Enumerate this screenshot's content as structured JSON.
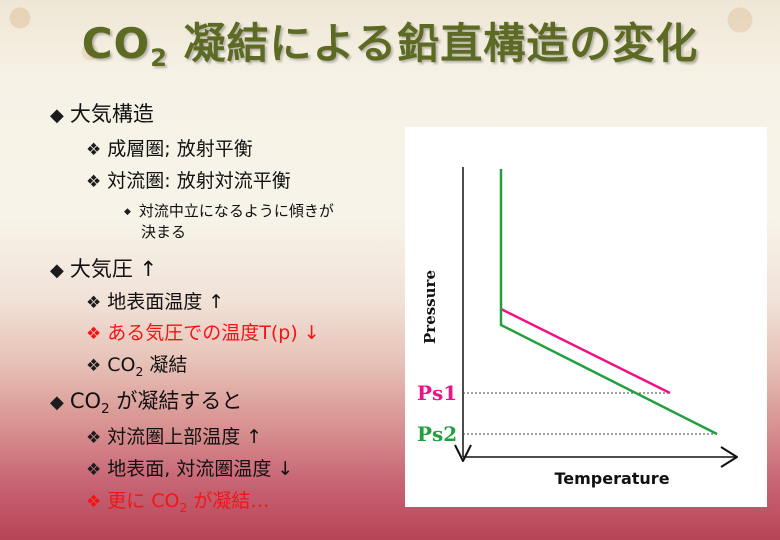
{
  "title": {
    "main": "CO",
    "sub": "2",
    "rest": " 凝結による鉛直構造の変化"
  },
  "outline": {
    "atm_structure": {
      "label": "大気構造"
    },
    "stratosphere": {
      "label": "成層圏; 放射平衡"
    },
    "troposphere": {
      "label": "対流圏: 放射対流平衡"
    },
    "lapse_line1": {
      "label": "対流中立になるように傾きが"
    },
    "lapse_line2": {
      "label": "決まる"
    },
    "pressure_up": {
      "label": "大気圧 ↑"
    },
    "surface_temp": {
      "label": "地表面温度 ↑"
    },
    "temp_at_p": {
      "label": "ある気圧での温度T(p) ↓"
    },
    "co2_condense": {
      "pre": "CO",
      "sub": "2",
      "post": " 凝結"
    },
    "when_condense": {
      "pre": "CO",
      "sub": "2",
      "post": " が凝結すると"
    },
    "upper_trop": {
      "label": "対流圏上部温度 ↑"
    },
    "surface_trop": {
      "label": "地表面, 対流圏温度 ↓"
    },
    "more_condense": {
      "pre": "更に CO",
      "sub": "2",
      "post": " が凝結…"
    }
  },
  "diagram": {
    "ylabel": "Pressure",
    "xlabel": "Temperature",
    "ps1": "Ps1",
    "ps2": "Ps2",
    "colors": {
      "profile1": "#ee1188",
      "profile2": "#22a040",
      "axis": "#111111"
    }
  }
}
